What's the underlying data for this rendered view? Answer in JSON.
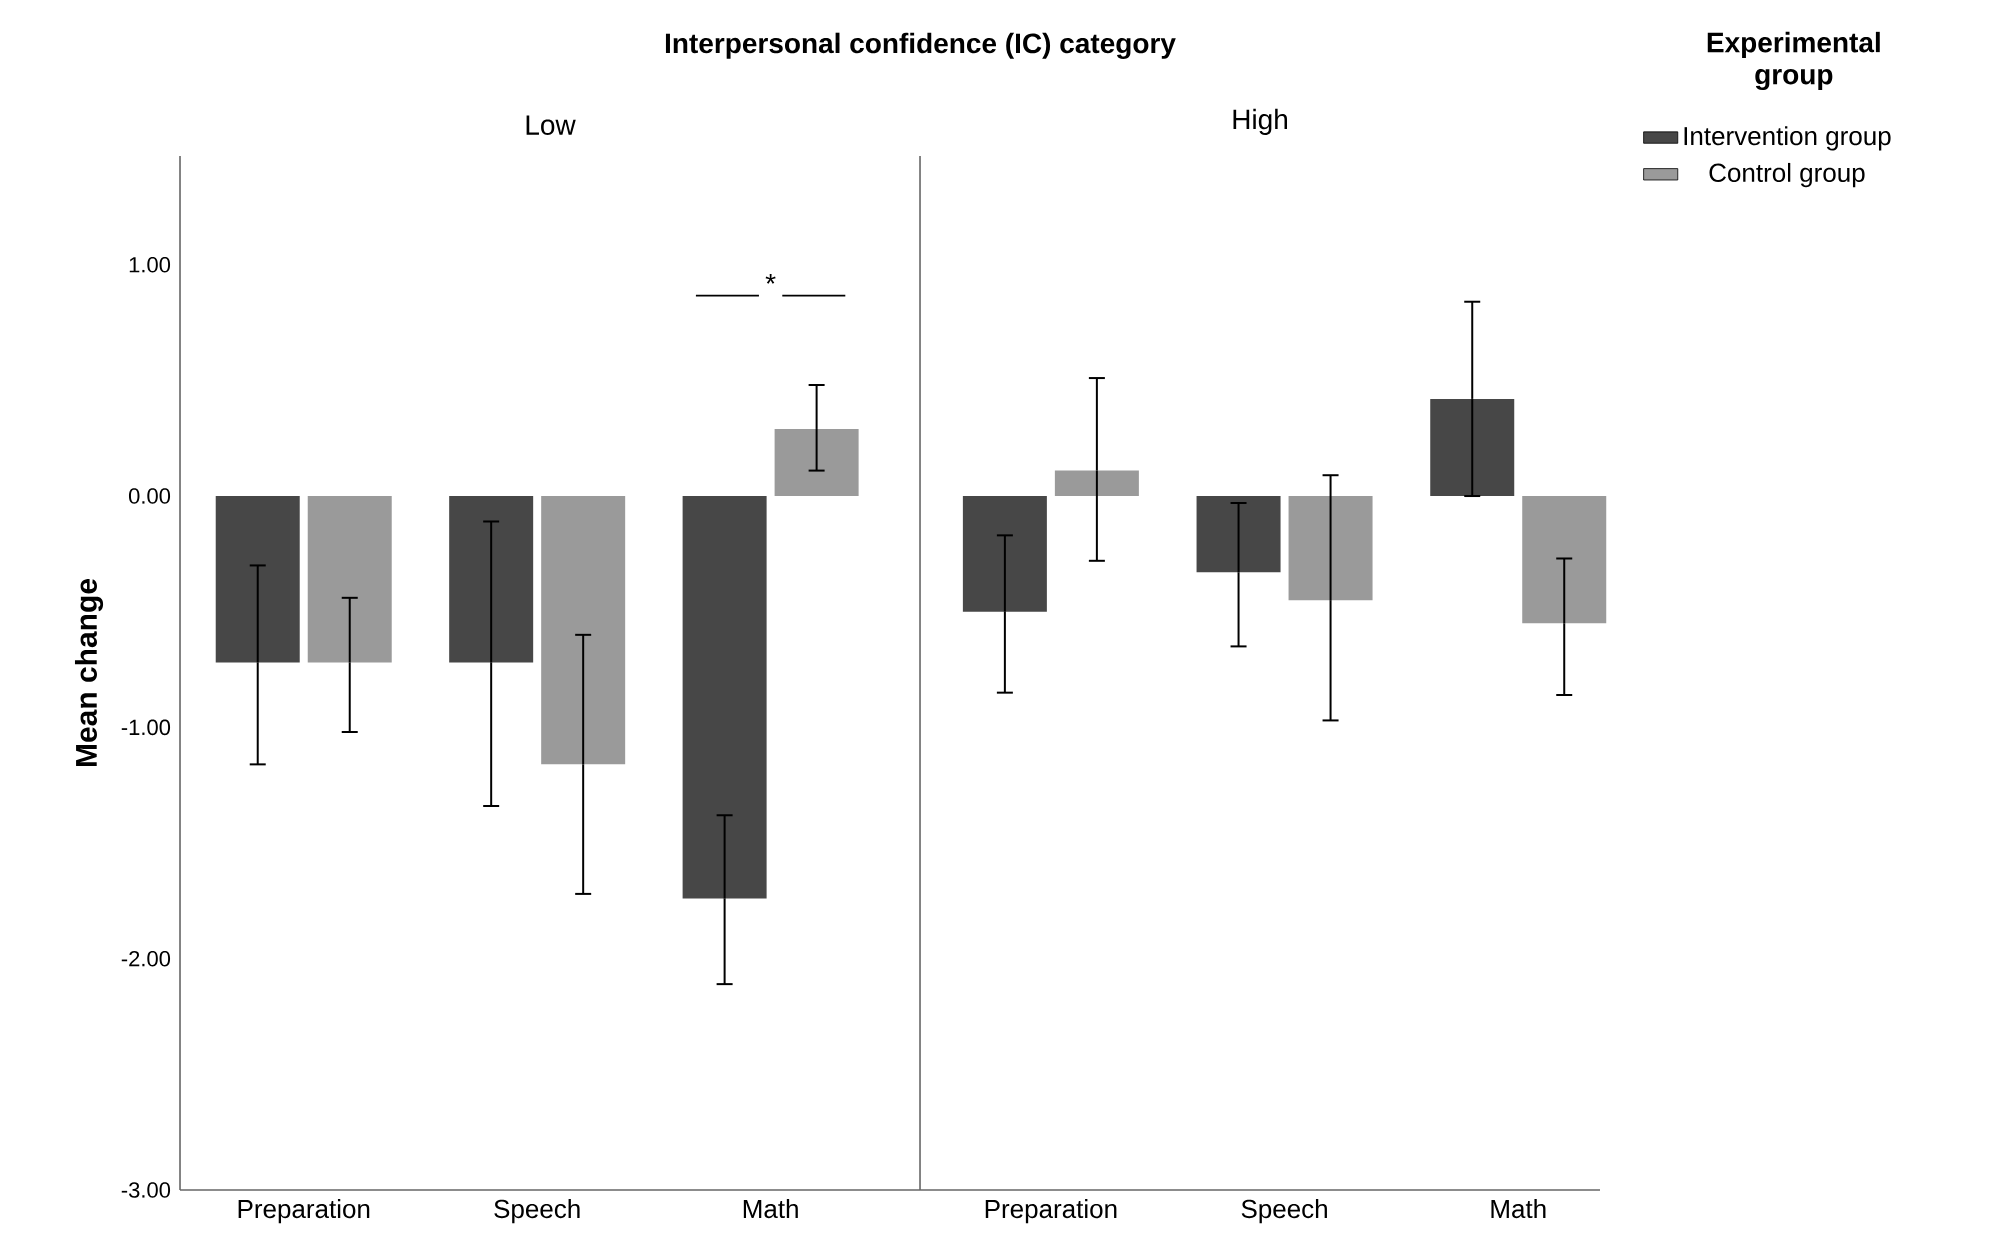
{
  "chart_data": [
    {
      "type": "bar",
      "title": "Interpersonal confidence (IC) category",
      "subtitle": "Low",
      "ylabel": "Mean change",
      "categories": [
        "Preparation",
        "Speech",
        "Math"
      ],
      "series": [
        {
          "color": "#474747",
          "values": [
            -0.72,
            -0.72,
            -1.74
          ],
          "errors": [
            [
              -1.16,
              -0.3
            ],
            [
              -1.34,
              -0.11
            ],
            [
              -2.11,
              -1.38
            ]
          ]
        },
        {
          "color": "#9a9a9a",
          "values": [
            -0.72,
            -1.16,
            0.29
          ],
          "errors": [
            [
              -1.02,
              -0.44
            ],
            [
              -1.72,
              -0.6
            ],
            [
              0.11,
              0.48
            ]
          ]
        }
      ],
      "annotations": [
        "*"
      ],
      "ylim": [
        -3,
        1.47
      ],
      "yticks": [
        {
          "value": -3,
          "label": "-3.00"
        },
        {
          "value": -2,
          "label": "-2.00"
        },
        {
          "value": -1,
          "label": "-1.00"
        },
        {
          "value": 0,
          "label": "0.00"
        },
        {
          "value": 1,
          "label": "1.00"
        }
      ]
    },
    {
      "type": "bar",
      "subtitle": "High",
      "categories": [
        "Preparation",
        "Speech",
        "Math"
      ],
      "tick_labels": "x",
      "legend": "right",
      "legend_title": "Experimental group",
      "series": [
        {
          "name": "Intervention group",
          "color": "#474747",
          "values": [
            -0.5,
            -0.33,
            0.42
          ],
          "errors": [
            [
              -0.85,
              -0.17
            ],
            [
              -0.65,
              -0.03
            ],
            [
              0.0,
              0.84
            ]
          ]
        },
        {
          "name": "Control group",
          "color": "#9a9a9a",
          "values": [
            0.11,
            -0.45,
            -0.55
          ],
          "errors": [
            [
              -0.28,
              0.51
            ],
            [
              -0.97,
              0.09
            ],
            [
              -0.86,
              -0.27
            ]
          ]
        }
      ],
      "ylim": [
        -3,
        1.47
      ]
    }
  ]
}
